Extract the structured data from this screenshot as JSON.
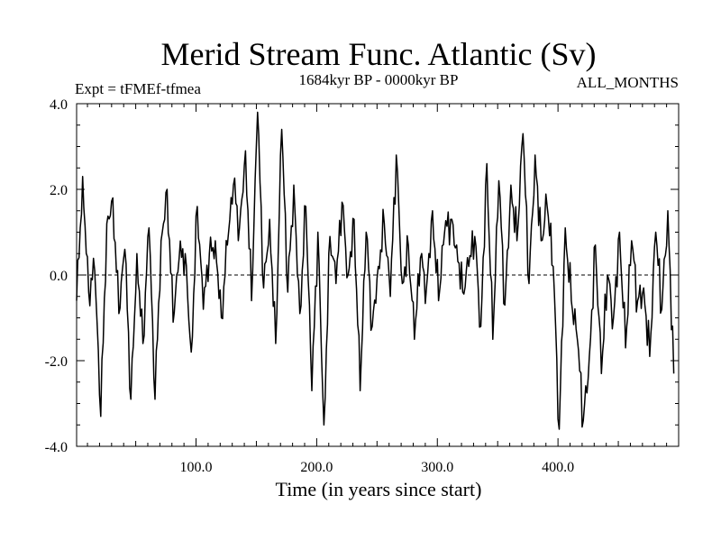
{
  "chart_data": {
    "type": "line",
    "title": "Merid Stream Func. Atlantic (Sv)",
    "subtitle_left": "Expt = tFMEf-tfmea",
    "subtitle_center": "1684kyr BP - 0000kyr BP",
    "subtitle_right": "ALL_MONTHS",
    "xlabel": "Time (in years since start)",
    "ylabel": "",
    "xlim": [
      1,
      500
    ],
    "ylim": [
      -4.0,
      4.0
    ],
    "x_ticks": [
      100.0,
      200.0,
      300.0,
      400.0
    ],
    "x_tick_labels": [
      "100.0",
      "200.0",
      "300.0",
      "400.0"
    ],
    "y_ticks": [
      -4.0,
      -2.0,
      0.0,
      2.0,
      4.0
    ],
    "y_tick_labels": [
      "-4.0",
      "-2.0",
      "0.0",
      "2.0",
      "4.0"
    ],
    "zero_line": 0.0,
    "line_color": "#000000",
    "series": [
      {
        "name": "Merid Stream Func. Atlantic",
        "x_start": 1,
        "x_step": 5,
        "values": [
          -0.6,
          2.3,
          -0.4,
          0.1,
          -3.3,
          1.2,
          1.8,
          -0.9,
          0.6,
          -2.9,
          0.5,
          -1.6,
          1.1,
          -2.9,
          0.8,
          2.0,
          -1.1,
          0.4,
          0.5,
          -1.8,
          1.6,
          -0.8,
          0.5,
          0.8,
          -1.0,
          0.7,
          2.1,
          1.1,
          2.9,
          -0.6,
          3.8,
          -0.3,
          1.3,
          -1.6,
          3.4,
          -0.4,
          2.1,
          -0.9,
          1.6,
          -2.7,
          1.0,
          -3.5,
          0.9,
          -0.2,
          1.7,
          0.0,
          1.3,
          -2.7,
          1.0,
          -1.2,
          0.2,
          1.2,
          -0.5,
          2.8,
          -0.2,
          0.7,
          -1.5,
          0.4,
          -0.3,
          1.5,
          -0.6,
          1.0,
          1.3,
          0.7,
          -0.4,
          0.2,
          0.9,
          -1.2,
          2.6,
          -1.5,
          2.2,
          -0.7,
          2.1,
          0.8,
          3.3,
          -0.2,
          2.8,
          0.8,
          1.6,
          0.2,
          -3.6,
          1.1,
          -0.6,
          -1.5,
          -3.4,
          -1.9,
          0.7,
          -2.3,
          0.0,
          -1.0,
          1.0,
          -1.7,
          0.8,
          -0.6,
          -0.3,
          -1.9,
          1.0,
          -0.8,
          1.5,
          -2.3
        ]
      }
    ]
  }
}
